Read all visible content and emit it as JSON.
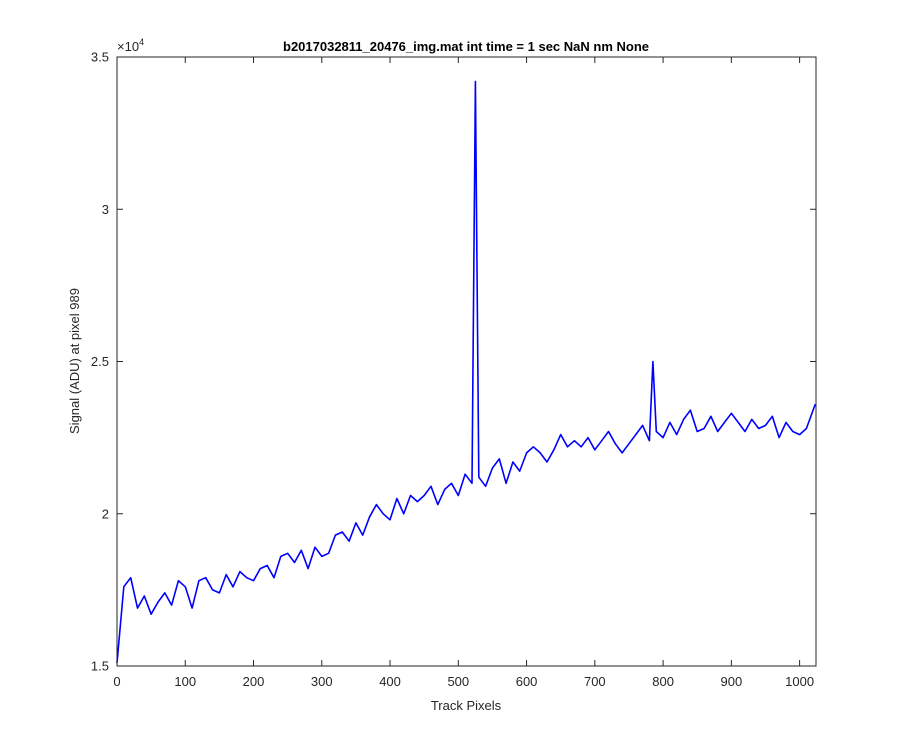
{
  "chart_data": {
    "type": "line",
    "title": "b2017032811_20476_img.mat int time = 1 sec  NaN nm None",
    "xlabel": "Track Pixels",
    "ylabel": "Signal (ADU) at pixel 989",
    "xlim": [
      0,
      1024
    ],
    "ylim": [
      15000,
      35000
    ],
    "x_ticks": [
      0,
      100,
      200,
      300,
      400,
      500,
      600,
      700,
      800,
      900,
      1000
    ],
    "x_tick_labels": [
      "0",
      "100",
      "200",
      "300",
      "400",
      "500",
      "600",
      "700",
      "800",
      "900",
      "1000"
    ],
    "y_ticks": [
      15000,
      20000,
      25000,
      30000,
      35000
    ],
    "y_tick_labels": [
      "1.5",
      "2",
      "2.5",
      "3",
      "3.5"
    ],
    "y_exponent_base": "×10",
    "y_exponent_power": "4",
    "grid": false,
    "line_color": "#0000ff",
    "series": [
      {
        "x": [
          0,
          10,
          20,
          30,
          40,
          50,
          60,
          70,
          80,
          90,
          100,
          110,
          120,
          130,
          140,
          150,
          160,
          170,
          180,
          190,
          200,
          210,
          220,
          230,
          240,
          250,
          260,
          270,
          280,
          290,
          300,
          310,
          320,
          330,
          340,
          350,
          360,
          370,
          380,
          390,
          400,
          410,
          420,
          430,
          440,
          450,
          460,
          470,
          480,
          490,
          500,
          510,
          520,
          525,
          530,
          540,
          550,
          560,
          570,
          580,
          590,
          600,
          610,
          620,
          630,
          640,
          650,
          660,
          670,
          680,
          690,
          700,
          710,
          720,
          730,
          740,
          750,
          760,
          770,
          780,
          785,
          790,
          800,
          810,
          820,
          830,
          840,
          850,
          860,
          870,
          880,
          890,
          900,
          910,
          920,
          930,
          940,
          950,
          960,
          970,
          980,
          990,
          1000,
          1010,
          1023
        ],
        "values": [
          15100,
          17600,
          17900,
          16900,
          17300,
          16700,
          17100,
          17400,
          17000,
          17800,
          17600,
          16900,
          17800,
          17900,
          17500,
          17400,
          18000,
          17600,
          18100,
          17900,
          17800,
          18200,
          18300,
          17900,
          18600,
          18700,
          18400,
          18800,
          18200,
          18900,
          18600,
          18700,
          19300,
          19400,
          19100,
          19700,
          19300,
          19900,
          20300,
          20000,
          19800,
          20500,
          20000,
          20600,
          20400,
          20600,
          20900,
          20300,
          20800,
          21000,
          20600,
          21300,
          21000,
          34200,
          21200,
          20900,
          21500,
          21800,
          21000,
          21700,
          21400,
          22000,
          22200,
          22000,
          21700,
          22100,
          22600,
          22200,
          22400,
          22200,
          22500,
          22100,
          22400,
          22700,
          22300,
          22000,
          22300,
          22600,
          22900,
          22400,
          25000,
          22700,
          22500,
          23000,
          22600,
          23100,
          23400,
          22700,
          22800,
          23200,
          22700,
          23000,
          23300,
          23000,
          22700,
          23100,
          22800,
          22900,
          23200,
          22500,
          23000,
          22700,
          22600,
          22800,
          23600
        ]
      }
    ]
  }
}
